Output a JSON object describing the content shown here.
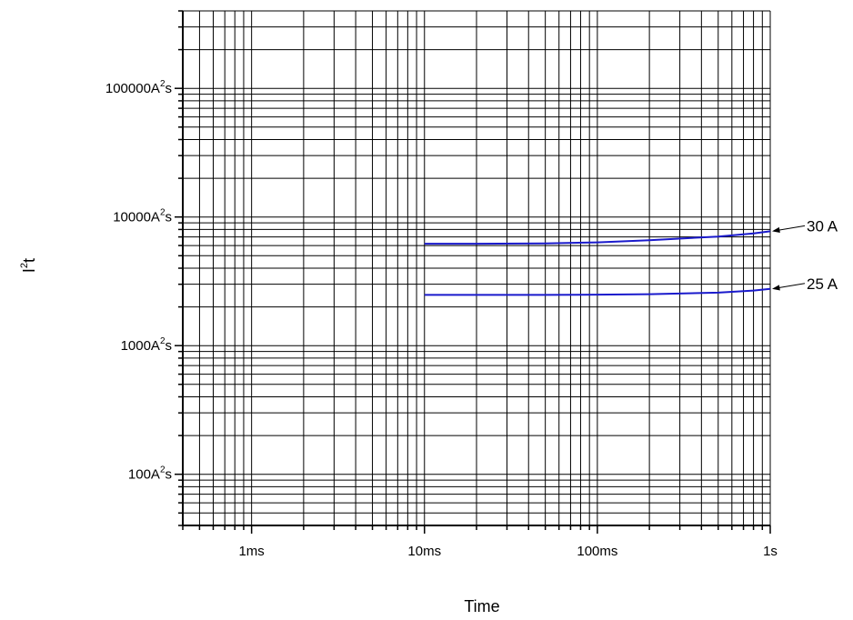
{
  "chart_data": {
    "type": "line",
    "title": "",
    "xlabel": "Time",
    "ylabel": "I²t",
    "x_scale": "log",
    "y_scale": "log",
    "xlim": [
      0.0004,
      1
    ],
    "ylim": [
      40,
      400000
    ],
    "grid": true,
    "line_color": "#1a1acc",
    "x_ticks": [
      {
        "value": 0.001,
        "label": "1ms"
      },
      {
        "value": 0.01,
        "label": "10ms"
      },
      {
        "value": 0.1,
        "label": "100ms"
      },
      {
        "value": 1,
        "label": "1s"
      }
    ],
    "y_ticks": [
      {
        "value": 100,
        "label": "100A²s"
      },
      {
        "value": 1000,
        "label": "1000A²s"
      },
      {
        "value": 10000,
        "label": "10000A²s"
      },
      {
        "value": 100000,
        "label": "100000A²s"
      }
    ],
    "series": [
      {
        "name": "30 A",
        "x": [
          0.01,
          0.02,
          0.05,
          0.1,
          0.2,
          0.5,
          0.8,
          1.0
        ],
        "y": [
          6200,
          6200,
          6230,
          6350,
          6600,
          7050,
          7450,
          7750
        ]
      },
      {
        "name": "25 A",
        "x": [
          0.01,
          0.02,
          0.05,
          0.1,
          0.2,
          0.5,
          0.8,
          1.0
        ],
        "y": [
          2480,
          2480,
          2480,
          2490,
          2510,
          2580,
          2680,
          2760
        ]
      }
    ]
  }
}
